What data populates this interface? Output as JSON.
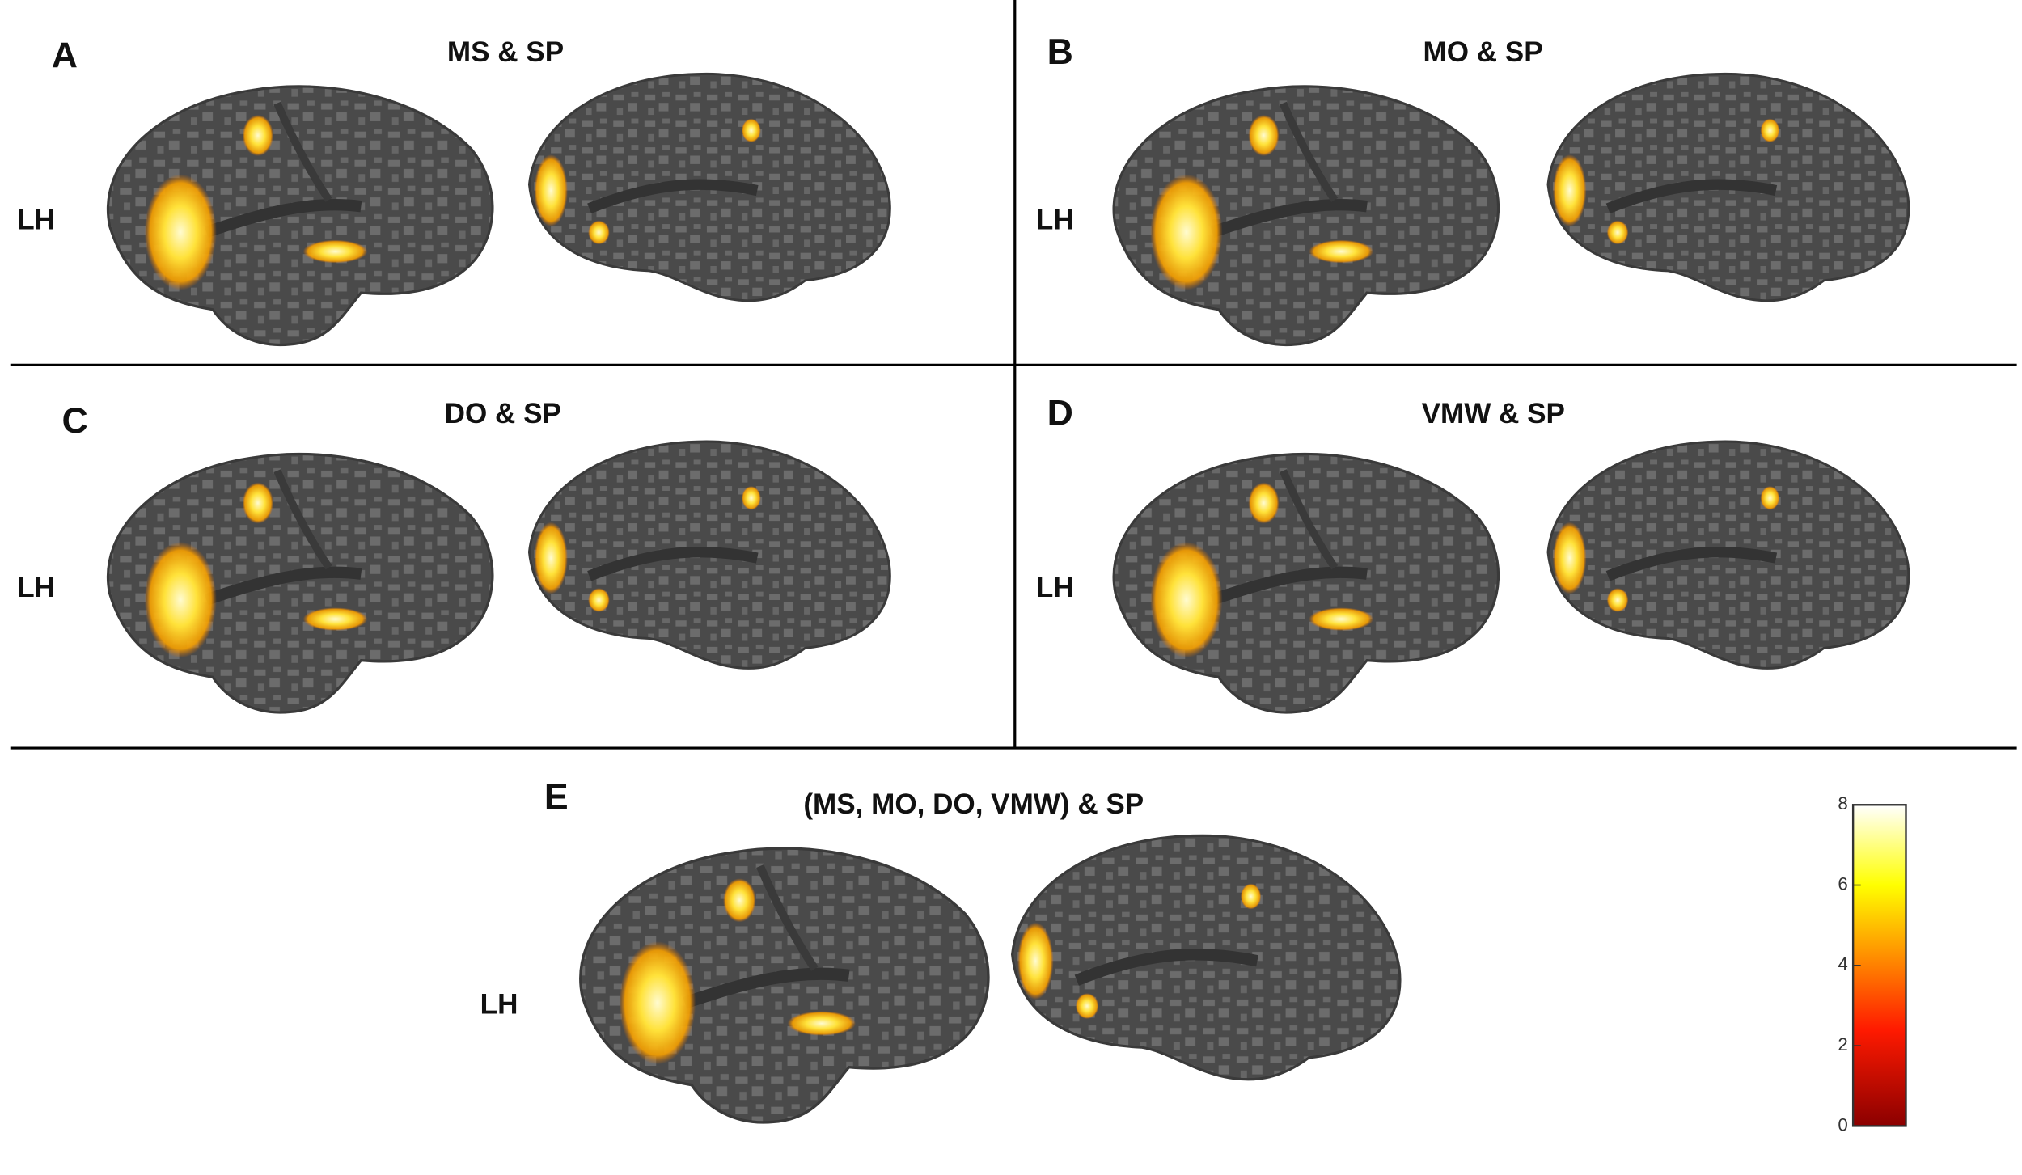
{
  "panels": [
    {
      "letter": "A",
      "title": "MS & SP",
      "hemisphere": "LH"
    },
    {
      "letter": "B",
      "title": "MO & SP",
      "hemisphere": "LH"
    },
    {
      "letter": "C",
      "title": "DO & SP",
      "hemisphere": "LH"
    },
    {
      "letter": "D",
      "title": "VMW & SP",
      "hemisphere": "LH"
    },
    {
      "letter": "E",
      "title": "(MS, MO, DO, VMW) & SP",
      "hemisphere": "LH"
    }
  ],
  "colorbar": {
    "lim": [
      0,
      8
    ],
    "ticks": [
      0,
      2,
      4,
      6,
      8
    ]
  }
}
